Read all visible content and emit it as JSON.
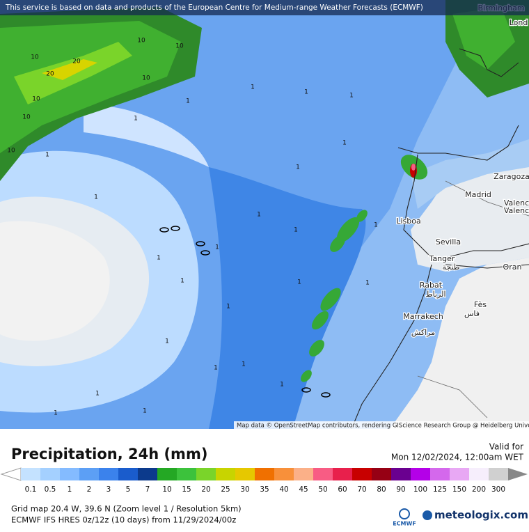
{
  "header": {
    "notice": "This service is based on data and products of the European Centre for Medium-range Weather Forecasts (ECMWF)",
    "attribution": "Map data © OpenStreetMap contributors, rendering GIScience Research Group @ Heidelberg University"
  },
  "map": {
    "cities": [
      "Birmingham",
      "Lond",
      "Zaragoza",
      "Madrid",
      "Valenc",
      "Valenc",
      "Lisboa",
      "Sevilla",
      "Tanger",
      "طنجة",
      "Oran",
      "Rabat",
      "الرباط",
      "Fès",
      "فاس",
      "Marrakech",
      "مراكش"
    ],
    "contour_labels": [
      "10",
      "10",
      "10",
      "20",
      "20",
      "10",
      "10",
      "10",
      "10",
      "1",
      "1",
      "1",
      "1",
      "1",
      "1",
      "1",
      "1",
      "1",
      "1",
      "1",
      "1",
      "1",
      "1",
      "1",
      "1",
      "1",
      "1",
      "1",
      "1",
      "1",
      "1",
      "1",
      "1",
      "1"
    ]
  },
  "legend": {
    "title": "Precipitation, 24h (mm)",
    "valid_label": "Valid for",
    "valid_time": "Mon 12/02/2024, 12:00am WET",
    "labels": [
      "0.1",
      "0.5",
      "1",
      "2",
      "3",
      "5",
      "7",
      "10",
      "15",
      "20",
      "25",
      "30",
      "35",
      "40",
      "45",
      "50",
      "60",
      "70",
      "80",
      "90",
      "100",
      "125",
      "150",
      "200",
      "300"
    ],
    "colors": [
      "#c4e2ff",
      "#a4d0ff",
      "#84bbff",
      "#5c9ff5",
      "#3b82ec",
      "#1a5ccc",
      "#0c3a8c",
      "#24a824",
      "#3cc23c",
      "#7ad42a",
      "#c8d400",
      "#e6c800",
      "#f07000",
      "#f8903a",
      "#fbb088",
      "#f85c84",
      "#e8204c",
      "#c80000",
      "#960014",
      "#6a0090",
      "#b400e8",
      "#d468ec",
      "#e8a8f4",
      "#f6eefc",
      "#d0d0d0"
    ]
  },
  "footer": {
    "grid": "Grid map 20.4 W, 39.6 N (Zoom level 1 / Resolution 5km)",
    "model": "ECMWF IFS HRES 0z/12z (10 days)  from  11/29/2024/00z",
    "ecmwf": "ECMWF",
    "brand": "meteologix.com"
  }
}
